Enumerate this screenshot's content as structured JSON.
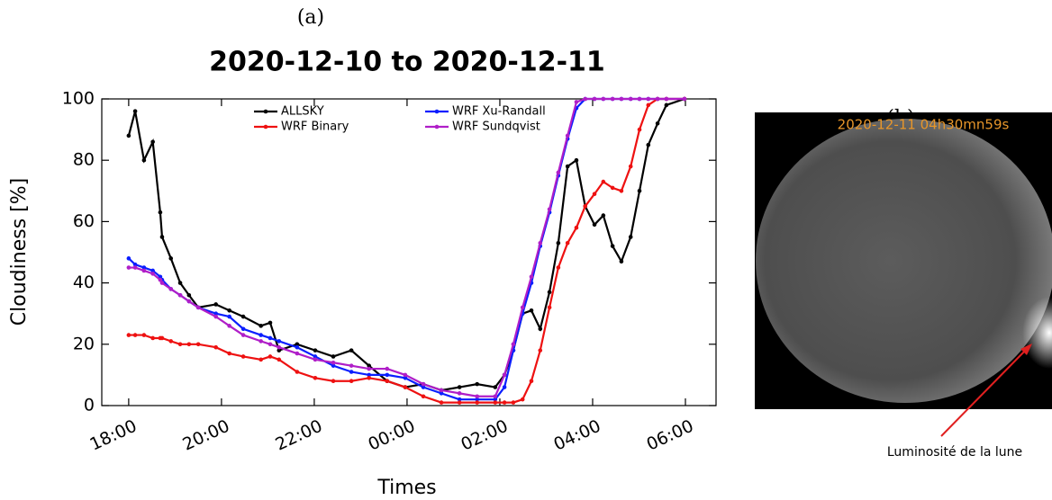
{
  "panel_a_label": "(a)",
  "chart_data": {
    "type": "line",
    "title": "2020-12-10 to 2020-12-11",
    "xlabel": "Times",
    "ylabel": "Cloudiness [%]",
    "x": [
      0,
      0.14,
      0.33,
      0.52,
      0.68,
      0.72,
      0.91,
      1.11,
      1.3,
      1.5,
      1.88,
      2.17,
      2.47,
      2.85,
      3.05,
      3.24,
      3.63,
      4.02,
      4.41,
      4.8,
      5.18,
      5.57,
      5.96,
      6.35,
      6.74,
      7.13,
      7.51,
      7.9,
      8.1,
      8.29,
      8.49,
      8.68,
      8.87,
      9.07,
      9.26,
      9.46,
      9.65,
      9.84,
      10.04,
      10.23,
      10.43,
      10.62,
      10.82,
      11.01,
      11.2,
      11.4,
      11.59,
      11.98
    ],
    "series": [
      {
        "name": "ALLSKY",
        "color": "#000000",
        "values": [
          88,
          96,
          80,
          86,
          63,
          55,
          48,
          40,
          36,
          32,
          33,
          31,
          29,
          26,
          27,
          18,
          20,
          18,
          16,
          18,
          13,
          8,
          6,
          7,
          5,
          6,
          7,
          6,
          10,
          18,
          30,
          31,
          25,
          37,
          53,
          78,
          80,
          65,
          59,
          62,
          52,
          47,
          55,
          70,
          85,
          92,
          98,
          100
        ]
      },
      {
        "name": "WRF Xu-Randall",
        "color": "#0a1eff",
        "values": [
          48,
          46,
          45,
          44,
          42,
          41,
          38,
          36,
          34,
          32,
          30,
          29,
          25,
          23,
          22,
          21,
          19,
          16,
          13,
          11,
          10,
          10,
          9,
          6,
          4,
          2,
          2,
          2,
          6,
          18,
          30,
          40,
          52,
          63,
          75,
          87,
          97,
          100,
          100,
          100,
          100,
          100,
          100,
          100,
          100,
          100,
          100,
          100
        ]
      },
      {
        "name": "WRF Binary",
        "color": "#ee1111",
        "values": [
          23,
          23,
          23,
          22,
          22,
          22,
          21,
          20,
          20,
          20,
          19,
          17,
          16,
          15,
          16,
          15,
          11,
          9,
          8,
          8,
          9,
          8,
          6,
          3,
          1,
          1,
          1,
          1,
          1,
          1,
          2,
          8,
          18,
          32,
          45,
          53,
          58,
          65,
          69,
          73,
          71,
          70,
          78,
          90,
          98,
          100,
          100,
          100
        ]
      },
      {
        "name": "WRF Sundqvist",
        "color": "#b01ec8",
        "values": [
          45,
          45,
          44,
          43,
          41,
          40,
          38,
          36,
          34,
          32,
          29,
          26,
          23,
          21,
          20,
          19,
          17,
          15,
          14,
          13,
          12,
          12,
          10,
          7,
          5,
          4,
          3,
          3,
          10,
          20,
          32,
          42,
          53,
          64,
          76,
          88,
          99,
          100,
          100,
          100,
          100,
          100,
          100,
          100,
          100,
          100,
          100,
          100
        ]
      }
    ],
    "xlim": [
      -0.58,
      12.66
    ],
    "xticks": [
      {
        "value": 0,
        "label": "18:00"
      },
      {
        "value": 2,
        "label": "20:00"
      },
      {
        "value": 4,
        "label": "22:00"
      },
      {
        "value": 6,
        "label": "00:00"
      },
      {
        "value": 8,
        "label": "02:00"
      },
      {
        "value": 10,
        "label": "04:00"
      },
      {
        "value": 12,
        "label": "06:00"
      }
    ],
    "ylim": [
      0,
      100
    ],
    "yticks": [
      0,
      20,
      40,
      60,
      80,
      100
    ],
    "grid": false,
    "legend": "upper center"
  },
  "panel_b": {
    "label": "(b)",
    "timestamp": "2020-12-11 04h30mn59s",
    "annotation": "Luminosité de la lune"
  }
}
